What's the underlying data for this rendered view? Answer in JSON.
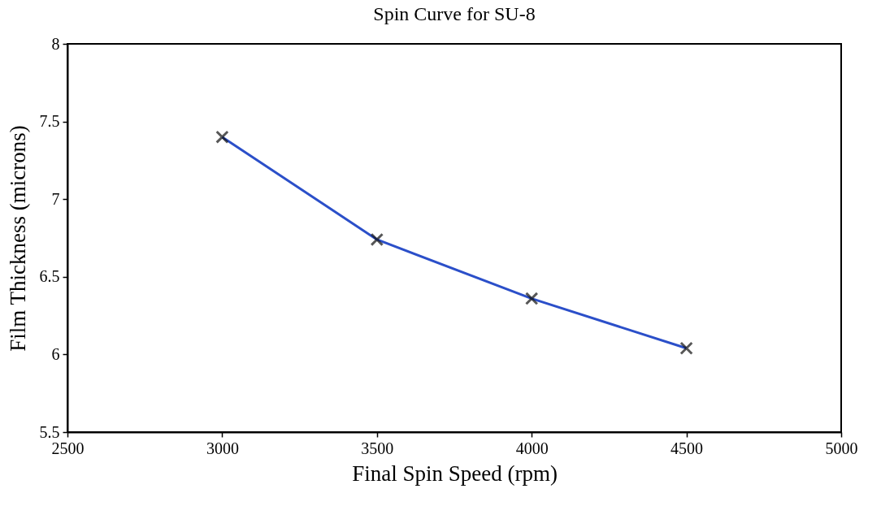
{
  "chart_data": {
    "type": "line",
    "title": "Spin Curve for SU-8",
    "xlabel": "Final Spin Speed (rpm)",
    "ylabel": "Film Thickness (microns)",
    "x": [
      3000,
      3500,
      4000,
      4500
    ],
    "series": [
      {
        "color": "#2b4fc9",
        "values": [
          7.4,
          6.74,
          6.36,
          6.04
        ]
      }
    ],
    "xlim": [
      2500,
      5000
    ],
    "xticks": [
      2500,
      3000,
      3500,
      4000,
      4500,
      5000
    ],
    "ylim": [
      5.5,
      8
    ],
    "yticks": [
      5.5,
      6,
      6.5,
      7,
      7.5,
      8
    ],
    "grid": false,
    "marker": "cross",
    "line_style": "solid"
  }
}
